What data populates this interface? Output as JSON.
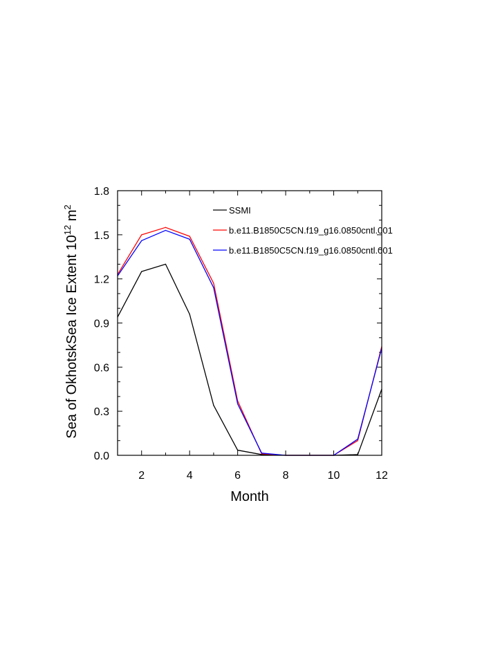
{
  "chart_data": {
    "type": "line",
    "title": "",
    "xlabel": "Month",
    "ylabel_main": "Sea of OkhotskSea Ice Extent 10",
    "ylabel_sup1": "12",
    "ylabel_unit": " m",
    "ylabel_sup2": "2",
    "xlim": [
      1,
      12
    ],
    "ylim": [
      0,
      1.8
    ],
    "xticks": [
      2,
      4,
      6,
      8,
      10,
      12
    ],
    "xtick_labels": [
      "2",
      "4",
      "6",
      "8",
      "10",
      "12"
    ],
    "yticks": [
      0,
      0.3,
      0.6,
      0.9,
      1.2,
      1.5,
      1.8
    ],
    "ytick_labels": [
      "0.0",
      "0.3",
      "0.6",
      "0.9",
      "1.2",
      "1.5",
      "1.8"
    ],
    "legend_position": "top-right",
    "grid": false,
    "x": [
      1,
      2,
      3,
      4,
      5,
      6,
      7,
      8,
      9,
      10,
      11,
      12
    ],
    "series": [
      {
        "name": "SSMI",
        "color": "#000000",
        "values": [
          0.94,
          1.25,
          1.3,
          0.96,
          0.34,
          0.035,
          0.005,
          0.0,
          0.0,
          0.0,
          0.005,
          0.45
        ]
      },
      {
        "name": "b.e11.B1850C5CN.f19_g16.0850cntl.001",
        "color": "#ff0000",
        "values": [
          1.23,
          1.5,
          1.55,
          1.49,
          1.17,
          0.37,
          0.01,
          0.0,
          0.0,
          0.0,
          0.1,
          0.74
        ]
      },
      {
        "name": "b.e11.B1850C5CN.f19_g16.0850cntl.001",
        "color": "#0000ff",
        "values": [
          1.22,
          1.46,
          1.53,
          1.47,
          1.14,
          0.35,
          0.015,
          0.0,
          0.0,
          0.0,
          0.11,
          0.73
        ]
      }
    ]
  }
}
